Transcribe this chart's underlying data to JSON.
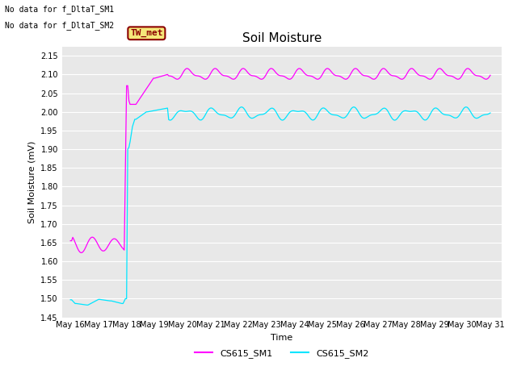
{
  "title": "Soil Moisture",
  "xlabel": "Time",
  "ylabel": "Soil Moisture (mV)",
  "ylim": [
    1.45,
    2.175
  ],
  "yticks": [
    1.45,
    1.5,
    1.55,
    1.6,
    1.65,
    1.7,
    1.75,
    1.8,
    1.85,
    1.9,
    1.95,
    2.0,
    2.05,
    2.1,
    2.15
  ],
  "background_color": "#e8e8e8",
  "figure_color": "#ffffff",
  "sm1_color": "#ff00ff",
  "sm2_color": "#00e5ff",
  "no_data_text1": "No data for f_DltaT_SM1",
  "no_data_text2": "No data for f_DltaT_SM2",
  "legend_sm1": "CS615_SM1",
  "legend_sm2": "CS615_SM2",
  "tw_met_label": "TW_met",
  "tw_met_bg": "#f5e87a",
  "tw_met_border": "#8b0000",
  "title_fontsize": 11,
  "axis_label_fontsize": 8,
  "tick_fontsize": 7,
  "annotation_fontsize": 7,
  "legend_fontsize": 8
}
